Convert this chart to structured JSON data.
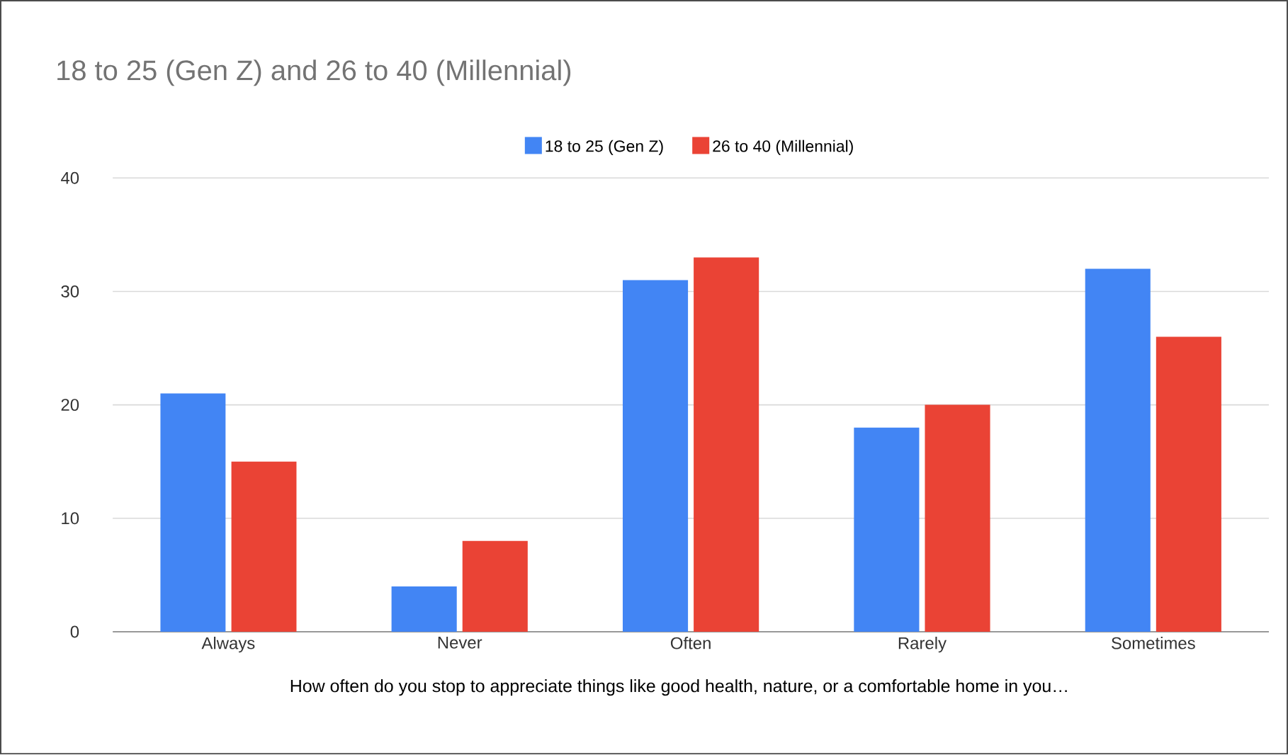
{
  "chart_data": {
    "type": "bar",
    "title": "18 to 25 (Gen Z) and 26 to 40 (Millennial)",
    "xlabel": "How often do you stop to appreciate things like good health, nature, or a comfortable home in you…",
    "categories": [
      "Always",
      "Never",
      "Often",
      "Rarely",
      "Sometimes"
    ],
    "series": [
      {
        "name": "18 to 25 (Gen Z)",
        "color": "#4285f4",
        "values": [
          21,
          4,
          31,
          18,
          32
        ]
      },
      {
        "name": "26 to 40 (Millennial)",
        "color": "#ea4335",
        "values": [
          15,
          8,
          33,
          20,
          26
        ]
      }
    ],
    "ylim": [
      0,
      40
    ],
    "yticks": [
      0,
      10,
      20,
      30,
      40
    ],
    "grid": "y",
    "legend": "top"
  }
}
